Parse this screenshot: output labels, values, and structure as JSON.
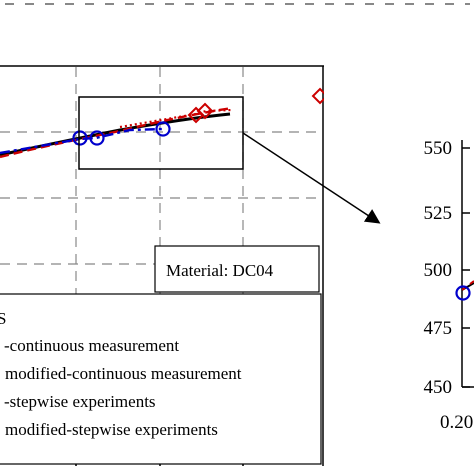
{
  "chart_data": [
    {
      "type": "line",
      "material_label": "Material: DC04",
      "legend": {
        "title_fragment": "S",
        "entries": [
          {
            "label": "-continuous measurement",
            "color": "#000000",
            "style": "solid"
          },
          {
            "label": "modified-continuous measurement",
            "color": "#cc0000",
            "style": "dashed"
          },
          {
            "label": "-stepwise experiments",
            "color": "#0000cc",
            "style": "dashdot",
            "marker": "circle"
          },
          {
            "label": "modified-stepwise experiments",
            "color": "#cc0000",
            "style": "dotted",
            "marker": "diamond"
          }
        ]
      },
      "grid": true,
      "zoom_box": true
    },
    {
      "type": "line",
      "y_ticks": [
        "550",
        "525",
        "500",
        "475",
        "450"
      ],
      "x_tick_fragment": "0.20",
      "ylim": [
        450,
        550
      ]
    }
  ]
}
